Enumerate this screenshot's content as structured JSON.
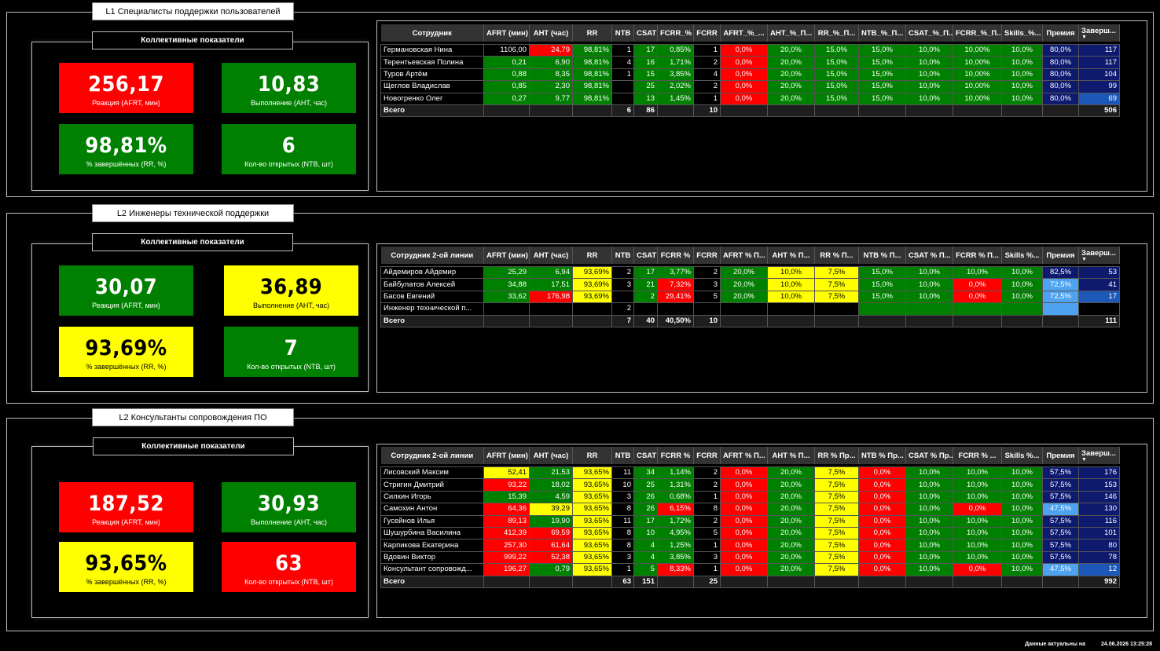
{
  "sections": [
    {
      "title": "L1 Специалисты поддержки пользователей",
      "kpi_title": "Коллективные показатели",
      "kpis": [
        {
          "value": "256,17",
          "label": "Реакция (AFRT, мин)",
          "color": "red"
        },
        {
          "value": "10,83",
          "label": "Выполнение (AHT, час)",
          "color": "green"
        },
        {
          "value": "98,81%",
          "label": "% завершённых (RR, %)",
          "color": "green"
        },
        {
          "value": "6",
          "label": "Кол-во открытых (NTB, шт)",
          "color": "green"
        }
      ],
      "columns": [
        "Сотрудник",
        "AFRT (мин)",
        "AHT (час)",
        "RR",
        "NTB",
        "CSAT",
        "FCRR_%",
        "FCRR",
        "AFRT_%_...",
        "AHT_%_П...",
        "RR_%_П...",
        "NTB_%_П...",
        "CSAT_%_П...",
        "FCRR_%_П...",
        "Skills_%...",
        "Премия",
        "Заверш..."
      ],
      "rows": [
        [
          "Германовская Нина",
          "1106,00",
          "24,79",
          "98,81%",
          "1",
          "17",
          "0,85%",
          "1",
          "0,0%",
          "20,0%",
          "15,0%",
          "15,0%",
          "10,0%",
          "10,00%",
          "10,0%",
          "80,0%",
          "117"
        ],
        [
          "Терентьевская Полина",
          "0,21",
          "6,90",
          "98,81%",
          "4",
          "16",
          "1,71%",
          "2",
          "0,0%",
          "20,0%",
          "15,0%",
          "15,0%",
          "10,0%",
          "10,00%",
          "10,0%",
          "80,0%",
          "117"
        ],
        [
          "Туров Артём",
          "0,88",
          "8,35",
          "98,81%",
          "1",
          "15",
          "3,85%",
          "4",
          "0,0%",
          "20,0%",
          "15,0%",
          "15,0%",
          "10,0%",
          "10,00%",
          "10,0%",
          "80,0%",
          "104"
        ],
        [
          "Щеглов Владислав",
          "0,85",
          "2,30",
          "98,81%",
          "",
          "25",
          "2,02%",
          "2",
          "0,0%",
          "20,0%",
          "15,0%",
          "15,0%",
          "10,0%",
          "10,00%",
          "10,0%",
          "80,0%",
          "99"
        ],
        [
          "Новогренко Олег",
          "0,27",
          "9,77",
          "98,81%",
          "",
          "13",
          "1,45%",
          "1",
          "0,0%",
          "20,0%",
          "15,0%",
          "15,0%",
          "10,0%",
          "10,00%",
          "10,0%",
          "80,0%",
          "69"
        ]
      ],
      "colors": [
        [
          "d",
          "d",
          "r",
          "g",
          "d",
          "g",
          "g",
          "d",
          "r",
          "g",
          "g",
          "g",
          "g",
          "g",
          "g",
          "n",
          "n"
        ],
        [
          "d",
          "g",
          "g",
          "g",
          "d",
          "g",
          "g",
          "d",
          "r",
          "g",
          "g",
          "g",
          "g",
          "g",
          "g",
          "n",
          "n"
        ],
        [
          "d",
          "g",
          "g",
          "g",
          "d",
          "g",
          "g",
          "d",
          "r",
          "g",
          "g",
          "g",
          "g",
          "g",
          "g",
          "n",
          "n"
        ],
        [
          "d",
          "g",
          "g",
          "g",
          "d",
          "g",
          "g",
          "d",
          "r",
          "g",
          "g",
          "g",
          "g",
          "g",
          "g",
          "n",
          "n"
        ],
        [
          "d",
          "g",
          "g",
          "g",
          "d",
          "g",
          "g",
          "d",
          "r",
          "g",
          "g",
          "g",
          "g",
          "g",
          "g",
          "n",
          "b"
        ]
      ],
      "total": [
        "Всего",
        "",
        "",
        "",
        "6",
        "86",
        "",
        "10",
        "",
        "",
        "",
        "",
        "",
        "",
        "",
        "",
        "506"
      ]
    },
    {
      "title": "L2 Инженеры технической поддержки",
      "kpi_title": "Коллективные показатели",
      "kpis": [
        {
          "value": "30,07",
          "label": "Реакция (AFRT, мин)",
          "color": "green"
        },
        {
          "value": "36,89",
          "label": "Выполнение (AHT, час)",
          "color": "yellow"
        },
        {
          "value": "93,69%",
          "label": "% завершённых (RR, %)",
          "color": "yellow"
        },
        {
          "value": "7",
          "label": "Кол-во открытых (NTB, шт)",
          "color": "green"
        }
      ],
      "columns": [
        "Сотрудник 2-ой линии",
        "AFRT (мин)",
        "AHT (час)",
        "RR",
        "NTB",
        "CSAT",
        "FCRR %",
        "FCRR",
        "AFRT % П...",
        "AHT % П...",
        "RR % П...",
        "NTB % П...",
        "CSAT % П...",
        "FCRR % П...",
        "Skills %...",
        "Премия",
        "Заверш..."
      ],
      "rows": [
        [
          "Айдемиров Айдемир",
          "25,29",
          "6,94",
          "93,69%",
          "2",
          "17",
          "3,77%",
          "2",
          "20,0%",
          "10,0%",
          "7,5%",
          "15,0%",
          "10,0%",
          "10,0%",
          "10,0%",
          "82,5%",
          "53"
        ],
        [
          "Байбулатов Алексей",
          "34,88",
          "17,51",
          "93,69%",
          "3",
          "21",
          "7,32%",
          "3",
          "20,0%",
          "10,0%",
          "7,5%",
          "15,0%",
          "10,0%",
          "0,0%",
          "10,0%",
          "72,5%",
          "41"
        ],
        [
          "Басов Евгений",
          "33,62",
          "176,98",
          "93,69%",
          "",
          "2",
          "29,41%",
          "5",
          "20,0%",
          "10,0%",
          "7,5%",
          "15,0%",
          "10,0%",
          "0,0%",
          "10,0%",
          "72,5%",
          "17"
        ],
        [
          "Инженер технической п...",
          "",
          "",
          "",
          "2",
          "",
          "",
          "",
          "",
          "",
          "",
          "",
          "",
          "",
          "",
          "",
          ""
        ]
      ],
      "colors": [
        [
          "d",
          "g",
          "g",
          "y",
          "d",
          "g",
          "g",
          "d",
          "g",
          "y",
          "y",
          "g",
          "g",
          "g",
          "g",
          "n",
          "n"
        ],
        [
          "d",
          "g",
          "g",
          "y",
          "d",
          "g",
          "r",
          "d",
          "g",
          "y",
          "y",
          "g",
          "g",
          "r",
          "g",
          "l",
          "n"
        ],
        [
          "d",
          "g",
          "r",
          "y",
          "d",
          "g",
          "r",
          "d",
          "g",
          "y",
          "y",
          "g",
          "g",
          "r",
          "g",
          "l",
          "b"
        ],
        [
          "d",
          "d",
          "d",
          "d",
          "d",
          "d",
          "d",
          "d",
          "d",
          "d",
          "d",
          "g",
          "g",
          "g",
          "g",
          "l",
          "d"
        ]
      ],
      "total": [
        "Всего",
        "",
        "",
        "",
        "7",
        "40",
        "40,50%",
        "10",
        "",
        "",
        "",
        "",
        "",
        "",
        "",
        "",
        "111"
      ]
    },
    {
      "title": "L2 Консультанты сопровождения ПО",
      "kpi_title": "Коллективные показатели",
      "kpis": [
        {
          "value": "187,52",
          "label": "Реакция (AFRT, мин)",
          "color": "red"
        },
        {
          "value": "30,93",
          "label": "Выполнение (AHT, час)",
          "color": "green"
        },
        {
          "value": "93,65%",
          "label": "% завершённых (RR, %)",
          "color": "yellow"
        },
        {
          "value": "63",
          "label": "Кол-во открытых (NTB, шт)",
          "color": "red"
        }
      ],
      "columns": [
        "Сотрудник 2-ой линии",
        "AFRT (мин)",
        "AHT (час)",
        "RR",
        "NTB",
        "CSAT",
        "FCRR %",
        "FCRR",
        "AFRT % П...",
        "AHT % П...",
        "RR % Пр...",
        "NTB % Пр...",
        "CSAT % Пр...",
        "FCRR % ...",
        "Skills %...",
        "Премия",
        "Заверш..."
      ],
      "rows": [
        [
          "Лисовский Максим",
          "52,41",
          "21,53",
          "93,65%",
          "11",
          "34",
          "1,14%",
          "2",
          "0,0%",
          "20,0%",
          "7,5%",
          "0,0%",
          "10,0%",
          "10,0%",
          "10,0%",
          "57,5%",
          "176"
        ],
        [
          "Стригин Дмитрий",
          "93,22",
          "18,02",
          "93,65%",
          "10",
          "25",
          "1,31%",
          "2",
          "0,0%",
          "20,0%",
          "7,5%",
          "0,0%",
          "10,0%",
          "10,0%",
          "10,0%",
          "57,5%",
          "153"
        ],
        [
          "Силкин Игорь",
          "15,39",
          "4,59",
          "93,65%",
          "3",
          "26",
          "0,68%",
          "1",
          "0,0%",
          "20,0%",
          "7,5%",
          "0,0%",
          "10,0%",
          "10,0%",
          "10,0%",
          "57,5%",
          "146"
        ],
        [
          "Самохин Антон",
          "64,36",
          "39,29",
          "93,65%",
          "8",
          "26",
          "6,15%",
          "8",
          "0,0%",
          "20,0%",
          "7,5%",
          "0,0%",
          "10,0%",
          "0,0%",
          "10,0%",
          "47,5%",
          "130"
        ],
        [
          "Гусейнов Илья",
          "89,13",
          "19,90",
          "93,65%",
          "11",
          "17",
          "1,72%",
          "2",
          "0,0%",
          "20,0%",
          "7,5%",
          "0,0%",
          "10,0%",
          "10,0%",
          "10,0%",
          "57,5%",
          "116"
        ],
        [
          "Шушурбина Василина",
          "412,39",
          "69,59",
          "93,65%",
          "8",
          "10",
          "4,95%",
          "5",
          "0,0%",
          "20,0%",
          "7,5%",
          "0,0%",
          "10,0%",
          "10,0%",
          "10,0%",
          "57,5%",
          "101"
        ],
        [
          "Карпикова Екатерина",
          "257,30",
          "61,64",
          "93,65%",
          "8",
          "4",
          "1,25%",
          "1",
          "0,0%",
          "20,0%",
          "7,5%",
          "0,0%",
          "10,0%",
          "10,0%",
          "10,0%",
          "57,5%",
          "80"
        ],
        [
          "Вдовин Виктор",
          "999,22",
          "52,38",
          "93,65%",
          "3",
          "4",
          "3,85%",
          "3",
          "0,0%",
          "20,0%",
          "7,5%",
          "0,0%",
          "10,0%",
          "10,0%",
          "10,0%",
          "57,5%",
          "78"
        ],
        [
          "Консультант сопровожд...",
          "196,27",
          "0,79",
          "93,65%",
          "1",
          "5",
          "8,33%",
          "1",
          "0,0%",
          "20,0%",
          "7,5%",
          "0,0%",
          "10,0%",
          "0,0%",
          "10,0%",
          "47,5%",
          "12"
        ]
      ],
      "colors": [
        [
          "d",
          "y",
          "g",
          "y",
          "d",
          "g",
          "g",
          "d",
          "r",
          "g",
          "y",
          "r",
          "g",
          "g",
          "g",
          "n",
          "n"
        ],
        [
          "d",
          "r",
          "g",
          "y",
          "d",
          "g",
          "g",
          "d",
          "r",
          "g",
          "y",
          "r",
          "g",
          "g",
          "g",
          "n",
          "n"
        ],
        [
          "d",
          "g",
          "g",
          "y",
          "d",
          "g",
          "g",
          "d",
          "r",
          "g",
          "y",
          "r",
          "g",
          "g",
          "g",
          "n",
          "n"
        ],
        [
          "d",
          "r",
          "y",
          "y",
          "d",
          "g",
          "r",
          "d",
          "r",
          "g",
          "y",
          "r",
          "g",
          "r",
          "g",
          "l",
          "n"
        ],
        [
          "d",
          "r",
          "g",
          "y",
          "d",
          "g",
          "g",
          "d",
          "r",
          "g",
          "y",
          "r",
          "g",
          "g",
          "g",
          "n",
          "n"
        ],
        [
          "d",
          "r",
          "r",
          "y",
          "d",
          "g",
          "g",
          "d",
          "r",
          "g",
          "y",
          "r",
          "g",
          "g",
          "g",
          "n",
          "n"
        ],
        [
          "d",
          "r",
          "r",
          "y",
          "d",
          "g",
          "g",
          "d",
          "r",
          "g",
          "y",
          "r",
          "g",
          "g",
          "g",
          "n",
          "n"
        ],
        [
          "d",
          "r",
          "r",
          "y",
          "d",
          "g",
          "g",
          "d",
          "r",
          "g",
          "y",
          "r",
          "g",
          "g",
          "g",
          "n",
          "n"
        ],
        [
          "d",
          "r",
          "g",
          "y",
          "d",
          "g",
          "r",
          "d",
          "r",
          "g",
          "y",
          "r",
          "g",
          "r",
          "g",
          "l",
          "b"
        ]
      ],
      "total": [
        "Всего",
        "",
        "",
        "",
        "63",
        "151",
        "",
        "25",
        "",
        "",
        "",
        "",
        "",
        "",
        "",
        "",
        "992"
      ]
    }
  ],
  "footer": {
    "label": "Данные актуальны на",
    "timestamp": "24.06.2026 13:25:28"
  },
  "palette": {
    "red": "#fe0000",
    "green": "#008000",
    "yellow": "#ffff00",
    "navy": "#0d1a6e",
    "blue": "#1c58b8",
    "light_blue": "#4ea2ef"
  },
  "icons": {
    "sort": "sort-descending-icon"
  }
}
